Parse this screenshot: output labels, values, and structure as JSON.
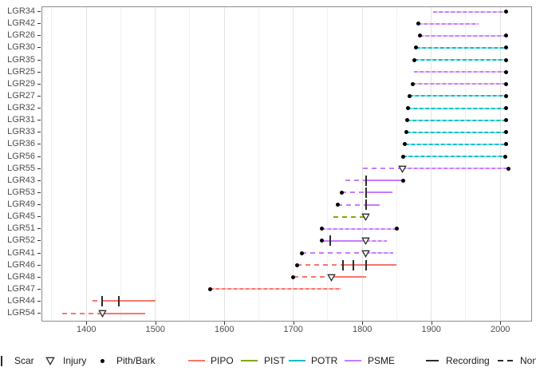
{
  "chart_data": {
    "type": "line",
    "subtype": "fire-history-fhx-demography",
    "title": "",
    "xlabel": "",
    "ylabel": "",
    "x_axis": {
      "range": [
        1335,
        2046
      ],
      "major_ticks": [
        1400,
        1500,
        1600,
        1700,
        1800,
        1900,
        2000
      ],
      "minor_ticks": [
        1350,
        1450,
        1550,
        1650,
        1750,
        1850,
        1950
      ],
      "grid": true
    },
    "y_axis": {
      "labels": [
        "LGR34",
        "LGR42",
        "LGR26",
        "LGR30",
        "LGR35",
        "LGR25",
        "LGR29",
        "LGR27",
        "LGR32",
        "LGR31",
        "LGR33",
        "LGR36",
        "LGR56",
        "LGR55",
        "LGR43",
        "LGR53",
        "LGR49",
        "LGR45",
        "LGR51",
        "LGR52",
        "LGR41",
        "LGR46",
        "LGR48",
        "LGR47",
        "LGR44",
        "LGR54"
      ]
    },
    "species_colors": {
      "PIPO": "#F8766D",
      "PIST": "#7CAE00",
      "POTR": "#00BFC4",
      "PSME": "#C77CFF"
    },
    "marker_color": "#000000",
    "series": [
      {
        "name": "LGR34",
        "species": "PSME",
        "first": 1903,
        "last": 2009,
        "pith_dot": false,
        "bark_dot": true,
        "scars": [],
        "injuries": [],
        "segments": [
          {
            "from": 1903,
            "to": 2009,
            "style": "dash_tint"
          }
        ]
      },
      {
        "name": "LGR42",
        "species": "PSME",
        "first": 1881,
        "last": 1969,
        "pith_dot": true,
        "bark_dot": false,
        "scars": [],
        "injuries": [],
        "segments": [
          {
            "from": 1881,
            "to": 1969,
            "style": "dash_tint"
          }
        ]
      },
      {
        "name": "LGR26",
        "species": "PSME",
        "first": 1883,
        "last": 2009,
        "pith_dot": true,
        "bark_dot": true,
        "scars": [],
        "injuries": [],
        "segments": [
          {
            "from": 1883,
            "to": 2009,
            "style": "dash_tint"
          }
        ]
      },
      {
        "name": "LGR30",
        "species": "POTR",
        "first": 1878,
        "last": 2009,
        "pith_dot": true,
        "bark_dot": true,
        "scars": [],
        "injuries": [],
        "segments": [
          {
            "from": 1878,
            "to": 2009,
            "style": "dash_tint"
          }
        ]
      },
      {
        "name": "LGR35",
        "species": "POTR",
        "first": 1876,
        "last": 2009,
        "pith_dot": true,
        "bark_dot": true,
        "scars": [],
        "injuries": [],
        "segments": [
          {
            "from": 1876,
            "to": 2009,
            "style": "dash_tint"
          }
        ]
      },
      {
        "name": "LGR25",
        "species": "PSME",
        "first": 1875,
        "last": 2009,
        "pith_dot": false,
        "bark_dot": true,
        "scars": [],
        "injuries": [],
        "segments": [
          {
            "from": 1875,
            "to": 2009,
            "style": "dash_tint"
          }
        ]
      },
      {
        "name": "LGR29",
        "species": "PSME",
        "first": 1873,
        "last": 2009,
        "pith_dot": true,
        "bark_dot": true,
        "scars": [],
        "injuries": [],
        "segments": [
          {
            "from": 1873,
            "to": 2009,
            "style": "dash_tint"
          }
        ]
      },
      {
        "name": "LGR27",
        "species": "POTR",
        "first": 1868,
        "last": 2009,
        "pith_dot": true,
        "bark_dot": true,
        "scars": [],
        "injuries": [],
        "segments": [
          {
            "from": 1868,
            "to": 2009,
            "style": "dash_tint"
          }
        ]
      },
      {
        "name": "LGR32",
        "species": "POTR",
        "first": 1866,
        "last": 2009,
        "pith_dot": true,
        "bark_dot": true,
        "scars": [],
        "injuries": [],
        "segments": [
          {
            "from": 1866,
            "to": 2009,
            "style": "dash_tint"
          }
        ]
      },
      {
        "name": "LGR31",
        "species": "POTR",
        "first": 1865,
        "last": 2009,
        "pith_dot": true,
        "bark_dot": true,
        "scars": [],
        "injuries": [],
        "segments": [
          {
            "from": 1865,
            "to": 2009,
            "style": "dash_tint"
          }
        ]
      },
      {
        "name": "LGR33",
        "species": "POTR",
        "first": 1864,
        "last": 2009,
        "pith_dot": true,
        "bark_dot": true,
        "scars": [],
        "injuries": [],
        "segments": [
          {
            "from": 1864,
            "to": 2009,
            "style": "dash_tint"
          }
        ]
      },
      {
        "name": "LGR36",
        "species": "POTR",
        "first": 1862,
        "last": 2009,
        "pith_dot": true,
        "bark_dot": true,
        "scars": [],
        "injuries": [],
        "segments": [
          {
            "from": 1862,
            "to": 2009,
            "style": "dash_tint"
          }
        ]
      },
      {
        "name": "LGR56",
        "species": "POTR",
        "first": 1859,
        "last": 2007,
        "pith_dot": true,
        "bark_dot": true,
        "scars": [],
        "injuries": [],
        "segments": [
          {
            "from": 1859,
            "to": 2007,
            "style": "dash_tint"
          }
        ]
      },
      {
        "name": "LGR55",
        "species": "PSME",
        "first": 1801,
        "last": 2012,
        "pith_dot": false,
        "bark_dot": true,
        "scars": [],
        "injuries": [
          1858
        ],
        "segments": [
          {
            "from": 1801,
            "to": 1858,
            "style": "dash_open"
          },
          {
            "from": 1858,
            "to": 2012,
            "style": "dash_tint"
          }
        ]
      },
      {
        "name": "LGR43",
        "species": "PSME",
        "first": 1776,
        "last": 1859,
        "pith_dot": false,
        "bark_dot": true,
        "scars": [
          1805
        ],
        "injuries": [],
        "segments": [
          {
            "from": 1776,
            "to": 1805,
            "style": "dash_open"
          },
          {
            "from": 1805,
            "to": 1859,
            "style": "solid"
          }
        ]
      },
      {
        "name": "LGR53",
        "species": "PSME",
        "first": 1770,
        "last": 1844,
        "pith_dot": true,
        "bark_dot": false,
        "scars": [
          1805
        ],
        "injuries": [],
        "segments": [
          {
            "from": 1770,
            "to": 1805,
            "style": "dash_open"
          },
          {
            "from": 1805,
            "to": 1844,
            "style": "solid"
          }
        ]
      },
      {
        "name": "LGR49",
        "species": "PSME",
        "first": 1764,
        "last": 1825,
        "pith_dot": true,
        "bark_dot": false,
        "scars": [
          1805
        ],
        "injuries": [],
        "segments": [
          {
            "from": 1764,
            "to": 1805,
            "style": "dash_open"
          },
          {
            "from": 1805,
            "to": 1825,
            "style": "solid"
          }
        ]
      },
      {
        "name": "LGR45",
        "species": "PIST",
        "first": 1758,
        "last": 1805,
        "pith_dot": false,
        "bark_dot": false,
        "scars": [],
        "injuries": [
          1805
        ],
        "segments": [
          {
            "from": 1758,
            "to": 1805,
            "style": "dash_open"
          }
        ]
      },
      {
        "name": "LGR51",
        "species": "PSME",
        "first": 1741,
        "last": 1850,
        "pith_dot": true,
        "bark_dot": true,
        "scars": [],
        "injuries": [],
        "segments": [
          {
            "from": 1741,
            "to": 1850,
            "style": "dash_tint"
          }
        ]
      },
      {
        "name": "LGR52",
        "species": "PSME",
        "first": 1741,
        "last": 1836,
        "pith_dot": true,
        "bark_dot": false,
        "scars": [
          1754
        ],
        "injuries": [
          1805
        ],
        "segments": [
          {
            "from": 1741,
            "to": 1805,
            "style": "solid"
          },
          {
            "from": 1805,
            "to": 1836,
            "style": "dash_tint"
          }
        ]
      },
      {
        "name": "LGR41",
        "species": "PSME",
        "first": 1712,
        "last": 1845,
        "pith_dot": true,
        "bark_dot": false,
        "scars": [],
        "injuries": [
          1805
        ],
        "segments": [
          {
            "from": 1712,
            "to": 1805,
            "style": "dash_open"
          },
          {
            "from": 1805,
            "to": 1845,
            "style": "dash_tint"
          }
        ]
      },
      {
        "name": "LGR46",
        "species": "PIPO",
        "first": 1705,
        "last": 1850,
        "pith_dot": true,
        "bark_dot": false,
        "scars": [
          1772,
          1787,
          1805
        ],
        "injuries": [],
        "segments": [
          {
            "from": 1705,
            "to": 1772,
            "style": "dash_open"
          },
          {
            "from": 1772,
            "to": 1850,
            "style": "solid"
          }
        ]
      },
      {
        "name": "LGR48",
        "species": "PIPO",
        "first": 1700,
        "last": 1805,
        "pith_dot": true,
        "bark_dot": false,
        "scars": [],
        "injuries": [
          1755
        ],
        "segments": [
          {
            "from": 1700,
            "to": 1755,
            "style": "dash_open"
          },
          {
            "from": 1755,
            "to": 1805,
            "style": "solid"
          }
        ]
      },
      {
        "name": "LGR47",
        "species": "PIPO",
        "first": 1579,
        "last": 1770,
        "pith_dot": true,
        "bark_dot": false,
        "scars": [],
        "injuries": [],
        "segments": [
          {
            "from": 1579,
            "to": 1770,
            "style": "dash_tint"
          }
        ]
      },
      {
        "name": "LGR44",
        "species": "PIPO",
        "first": 1409,
        "last": 1500,
        "pith_dot": false,
        "bark_dot": false,
        "scars": [
          1423,
          1447
        ],
        "injuries": [],
        "segments": [
          {
            "from": 1409,
            "to": 1423,
            "style": "dash_open"
          },
          {
            "from": 1423,
            "to": 1500,
            "style": "solid"
          }
        ]
      },
      {
        "name": "LGR54",
        "species": "PIPO",
        "first": 1365,
        "last": 1485,
        "pith_dot": false,
        "bark_dot": false,
        "scars": [],
        "injuries": [
          1423
        ],
        "segments": [
          {
            "from": 1365,
            "to": 1423,
            "style": "dash_open"
          },
          {
            "from": 1423,
            "to": 1485,
            "style": "solid"
          }
        ]
      }
    ],
    "legend": {
      "items": [
        {
          "type": "scar",
          "label": "Scar"
        },
        {
          "type": "injury",
          "label": "Injury"
        },
        {
          "type": "pith",
          "label": "Pith/Bark"
        },
        {
          "type": "species",
          "label": "PIPO",
          "color": "#F8766D"
        },
        {
          "type": "species",
          "label": "PIST",
          "color": "#7CAE00"
        },
        {
          "type": "species",
          "label": "POTR",
          "color": "#00BFC4"
        },
        {
          "type": "species",
          "label": "PSME",
          "color": "#C77CFF"
        },
        {
          "type": "recording",
          "label": "Recording"
        },
        {
          "type": "nonrecording",
          "label": "Non-recording"
        }
      ]
    }
  }
}
